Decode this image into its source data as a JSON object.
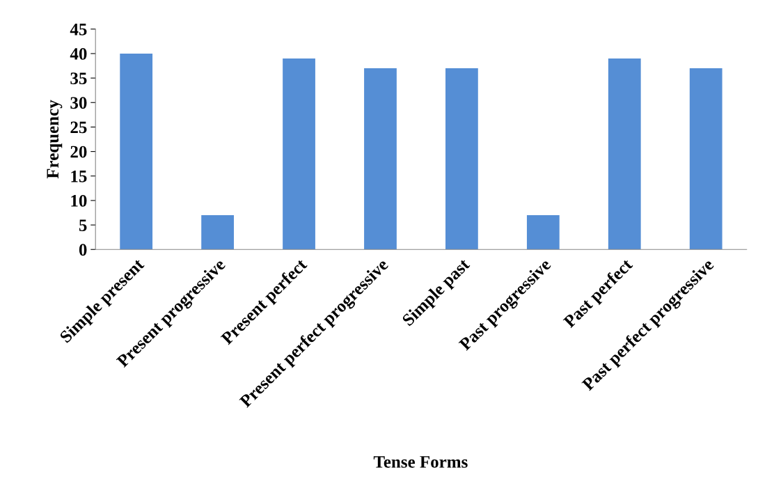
{
  "chart_data": {
    "type": "bar",
    "xlabel": "Tense Forms",
    "ylabel": "Frequency",
    "categories": [
      "Simple present",
      "Present progressive",
      "Present perfect",
      "Present perfect progressive",
      "Simple past",
      "Past progressive",
      "Past perfect",
      "Past perfect progressive"
    ],
    "values": [
      40,
      7,
      39,
      37,
      37,
      7,
      39,
      37
    ],
    "color": "#558ed5",
    "ylim": [
      0,
      45
    ],
    "yticks": [
      0,
      5,
      10,
      15,
      20,
      25,
      30,
      35,
      40,
      45
    ],
    "grid": false,
    "legend": false
  }
}
